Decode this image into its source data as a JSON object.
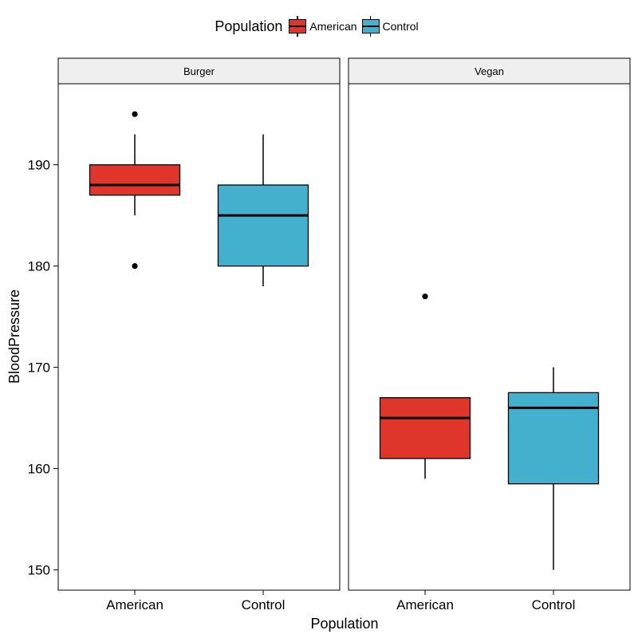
{
  "chart_data": {
    "type": "boxplot",
    "xlabel": "Population",
    "ylabel": "BloodPressure",
    "ylim": [
      148,
      198
    ],
    "y_ticks": [
      150,
      160,
      170,
      180,
      190
    ],
    "categories": [
      "American",
      "Control"
    ],
    "legend": {
      "title": "Population",
      "placement": "top",
      "entries": [
        {
          "label": "American",
          "color": "#E0352B"
        },
        {
          "label": "Control",
          "color": "#43B0CE"
        }
      ]
    },
    "facets": [
      {
        "label": "Burger",
        "boxes": [
          {
            "category": "American",
            "whisker_low": 185,
            "q1": 187,
            "median": 188,
            "q3": 190,
            "whisker_high": 193,
            "outliers": [
              180,
              195
            ]
          },
          {
            "category": "Control",
            "whisker_low": 178,
            "q1": 180,
            "median": 185,
            "q3": 188,
            "whisker_high": 193,
            "outliers": []
          }
        ]
      },
      {
        "label": "Vegan",
        "boxes": [
          {
            "category": "American",
            "whisker_low": 159,
            "q1": 161,
            "median": 165,
            "q3": 167,
            "whisker_high": 167,
            "outliers": [
              177
            ]
          },
          {
            "category": "Control",
            "whisker_low": 150,
            "q1": 158.5,
            "median": 166,
            "q3": 167.5,
            "whisker_high": 170,
            "outliers": []
          }
        ]
      }
    ],
    "grid": false
  }
}
